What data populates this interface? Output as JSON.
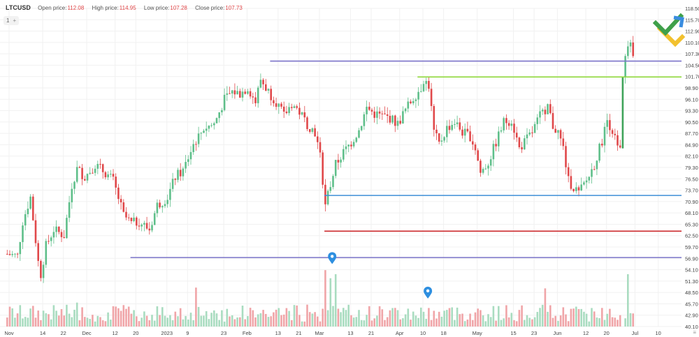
{
  "header": {
    "symbol": "LTCUSD",
    "open_label": "Open price:",
    "open_value": "112.08",
    "high_label": "High price:",
    "high_value": "114.95",
    "low_label": "Low price:",
    "low_value": "107.28",
    "close_label": "Close price:",
    "close_value": "107.73"
  },
  "interval": {
    "label": "1",
    "add_symbol": "+"
  },
  "colors": {
    "up": "#5fbf8a",
    "down": "#e0484a",
    "vol_up": "#a9dcc0",
    "vol_down": "#f0a5a8",
    "grid": "#f1f1f1",
    "purple": "#7b73c9",
    "blue": "#3d8fd6",
    "red": "#cc2a2e",
    "lime": "#8fd93a",
    "green": "#3fa35a",
    "marker": "#2e8fe0",
    "logo_green": "#3fa04a",
    "logo_yellow": "#f2c12e",
    "logo_blue": "#3a8de0"
  },
  "chart_data": {
    "type": "candlestick",
    "symbol": "LTCUSD",
    "y_ticks": [
      118.5,
      115.7,
      112.9,
      110.1,
      107.3,
      104.5,
      101.7,
      98.9,
      96.1,
      93.3,
      90.5,
      87.7,
      84.9,
      82.1,
      79.3,
      76.5,
      73.7,
      70.9,
      68.1,
      65.3,
      62.5,
      59.7,
      56.9,
      54.1,
      51.3,
      48.5,
      45.7,
      42.9,
      40.1
    ],
    "ylim": [
      40.1,
      118.5
    ],
    "x_ticks": [
      {
        "label": "Nov",
        "day": 0
      },
      {
        "label": "14",
        "day": 13
      },
      {
        "label": "22",
        "day": 21
      },
      {
        "label": "Dec",
        "day": 30
      },
      {
        "label": "12",
        "day": 41
      },
      {
        "label": "20",
        "day": 49
      },
      {
        "label": "2023",
        "day": 61
      },
      {
        "label": "9",
        "day": 69
      },
      {
        "label": "23",
        "day": 83
      },
      {
        "label": "Feb",
        "day": 92
      },
      {
        "label": "13",
        "day": 104
      },
      {
        "label": "21",
        "day": 112
      },
      {
        "label": "Mar",
        "day": 120
      },
      {
        "label": "13",
        "day": 132
      },
      {
        "label": "21",
        "day": 140
      },
      {
        "label": "Apr",
        "day": 151
      },
      {
        "label": "10",
        "day": 160
      },
      {
        "label": "18",
        "day": 168
      },
      {
        "label": "May",
        "day": 181
      },
      {
        "label": "15",
        "day": 195
      },
      {
        "label": "23",
        "day": 203
      },
      {
        "label": "Jun",
        "day": 212
      },
      {
        "label": "12",
        "day": 223
      },
      {
        "label": "20",
        "day": 231
      },
      {
        "label": "Jul",
        "day": 242
      },
      {
        "label": "10",
        "day": 251
      }
    ],
    "close_path": [
      [
        0,
        58.0
      ],
      [
        4,
        57.5
      ],
      [
        6,
        66.0
      ],
      [
        9,
        72.0
      ],
      [
        12,
        56.0
      ],
      [
        13,
        53.0
      ],
      [
        15,
        60.0
      ],
      [
        18,
        64.0
      ],
      [
        22,
        62.5
      ],
      [
        25,
        75.0
      ],
      [
        27,
        79.0
      ],
      [
        30,
        77.0
      ],
      [
        34,
        80.0
      ],
      [
        38,
        78.0
      ],
      [
        41,
        76.0
      ],
      [
        45,
        67.5
      ],
      [
        48,
        65.5
      ],
      [
        51,
        66.0
      ],
      [
        55,
        64.0
      ],
      [
        58,
        70.0
      ],
      [
        62,
        72.0
      ],
      [
        65,
        77.0
      ],
      [
        68,
        78.5
      ],
      [
        72,
        85.0
      ],
      [
        76,
        89.0
      ],
      [
        80,
        90.0
      ],
      [
        84,
        96.0
      ],
      [
        87,
        98.0
      ],
      [
        90,
        97.5
      ],
      [
        93,
        99.0
      ],
      [
        96,
        95.5
      ],
      [
        98,
        101.0
      ],
      [
        101,
        98.0
      ],
      [
        104,
        95.5
      ],
      [
        107,
        92.0
      ],
      [
        110,
        95.0
      ],
      [
        113,
        93.0
      ],
      [
        116,
        90.0
      ],
      [
        119,
        88.0
      ],
      [
        121,
        82.0
      ],
      [
        123,
        70.0
      ],
      [
        124,
        72.5
      ],
      [
        127,
        80.0
      ],
      [
        130,
        83.0
      ],
      [
        133,
        85.5
      ],
      [
        136,
        88.5
      ],
      [
        139,
        94.0
      ],
      [
        142,
        92.5
      ],
      [
        145,
        92.0
      ],
      [
        148,
        91.5
      ],
      [
        151,
        90.0
      ],
      [
        154,
        93.5
      ],
      [
        157,
        96.5
      ],
      [
        160,
        99.0
      ],
      [
        161,
        101.0
      ],
      [
        163,
        99.5
      ],
      [
        165,
        88.0
      ],
      [
        167,
        85.0
      ],
      [
        170,
        89.0
      ],
      [
        173,
        90.5
      ],
      [
        176,
        88.0
      ],
      [
        179,
        87.0
      ],
      [
        181,
        84.0
      ],
      [
        183,
        78.0
      ],
      [
        186,
        80.5
      ],
      [
        189,
        85.5
      ],
      [
        192,
        90.5
      ],
      [
        195,
        91.0
      ],
      [
        198,
        84.0
      ],
      [
        200,
        85.5
      ],
      [
        203,
        88.0
      ],
      [
        206,
        92.0
      ],
      [
        209,
        94.5
      ],
      [
        211,
        89.5
      ],
      [
        213,
        88.0
      ],
      [
        215,
        84.0
      ],
      [
        217,
        76.0
      ],
      [
        219,
        74.5
      ],
      [
        221,
        73.0
      ],
      [
        224,
        76.0
      ],
      [
        227,
        80.0
      ],
      [
        230,
        86.0
      ],
      [
        232,
        91.0
      ],
      [
        234,
        88.5
      ],
      [
        236,
        84.0
      ],
      [
        237,
        83.5
      ],
      [
        239,
        106.0
      ],
      [
        241,
        110.0
      ],
      [
        242,
        107.7
      ]
    ],
    "volume_spikes": [
      {
        "day": 27,
        "value": 46.0
      },
      {
        "day": 73,
        "value": 49.7
      },
      {
        "day": 123,
        "value": 54.0
      },
      {
        "day": 125,
        "value": 52.0
      },
      {
        "day": 127,
        "value": 53.0
      },
      {
        "day": 208,
        "value": 49.5
      },
      {
        "day": 238,
        "value": 59.8
      },
      {
        "day": 240,
        "value": 53.0
      }
    ],
    "levels": [
      {
        "name": "purple-high",
        "price": 105.5,
        "from_day": 102,
        "color": "purple"
      },
      {
        "name": "lime-resistance",
        "price": 101.6,
        "from_day": 159,
        "color": "lime"
      },
      {
        "name": "blue-support",
        "price": 72.4,
        "from_day": 123,
        "color": "blue"
      },
      {
        "name": "red-support",
        "price": 63.6,
        "from_day": 123,
        "color": "red"
      },
      {
        "name": "purple-low",
        "price": 57.1,
        "from_day": 48,
        "color": "purple"
      }
    ],
    "breakout": {
      "day": 238,
      "from": 84.0,
      "to": 101.6
    },
    "markers": [
      {
        "day": 126,
        "price": 55.5
      },
      {
        "day": 163,
        "price": 47.0
      }
    ]
  }
}
